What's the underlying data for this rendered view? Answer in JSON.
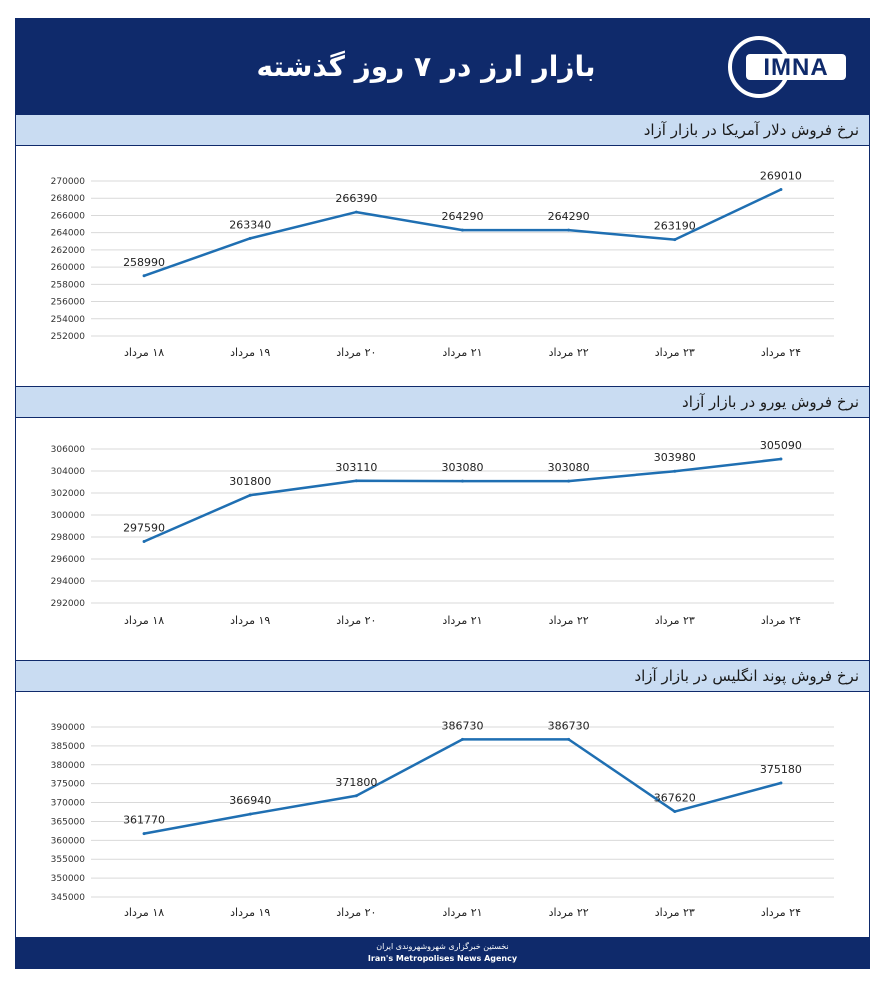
{
  "header": {
    "title": "بازار ارز در ۷ روز گذشته",
    "logo_text": "IMNA"
  },
  "footer": {
    "line1": "نخستین خبرگزاری شهروشهروندی ایران",
    "line2": "Iran's Metropolises News Agency"
  },
  "colors": {
    "header_bg": "#0f2a6b",
    "section_bg": "#c9dcf2",
    "line": "#1f6fb2",
    "grid": "#d9d9d9"
  },
  "chart_data": [
    {
      "type": "line",
      "title": "نرخ فروش دلار آمریکا در بازار آزاد",
      "categories": [
        "۱۸ مرداد",
        "۱۹ مرداد",
        "۲۰ مرداد",
        "۲۱ مرداد",
        "۲۲ مرداد",
        "۲۳ مرداد",
        "۲۴ مرداد"
      ],
      "values": [
        258990,
        263340,
        266390,
        264290,
        264290,
        263190,
        269010
      ],
      "ylim": [
        252000,
        270000
      ],
      "yticks": [
        252000,
        254000,
        256000,
        258000,
        260000,
        262000,
        264000,
        266000,
        268000,
        270000
      ],
      "grid": true
    },
    {
      "type": "line",
      "title": "نرخ فروش یورو در بازار آزاد",
      "categories": [
        "۱۸ مرداد",
        "۱۹ مرداد",
        "۲۰ مرداد",
        "۲۱ مرداد",
        "۲۲ مرداد",
        "۲۳ مرداد",
        "۲۴ مرداد"
      ],
      "values": [
        297590,
        301800,
        303110,
        303080,
        303080,
        303980,
        305090
      ],
      "ylim": [
        292000,
        306000
      ],
      "yticks": [
        292000,
        294000,
        296000,
        298000,
        300000,
        302000,
        304000,
        306000
      ],
      "grid": true
    },
    {
      "type": "line",
      "title": "نرخ فروش پوند انگلیس در بازار آزاد",
      "categories": [
        "۱۸ مرداد",
        "۱۹ مرداد",
        "۲۰ مرداد",
        "۲۱ مرداد",
        "۲۲ مرداد",
        "۲۳ مرداد",
        "۲۴ مرداد"
      ],
      "values": [
        361770,
        366940,
        371800,
        386730,
        386730,
        367620,
        375180
      ],
      "ylim": [
        345000,
        390000
      ],
      "yticks": [
        345000,
        350000,
        355000,
        360000,
        365000,
        370000,
        375000,
        380000,
        385000,
        390000
      ],
      "grid": true
    }
  ]
}
